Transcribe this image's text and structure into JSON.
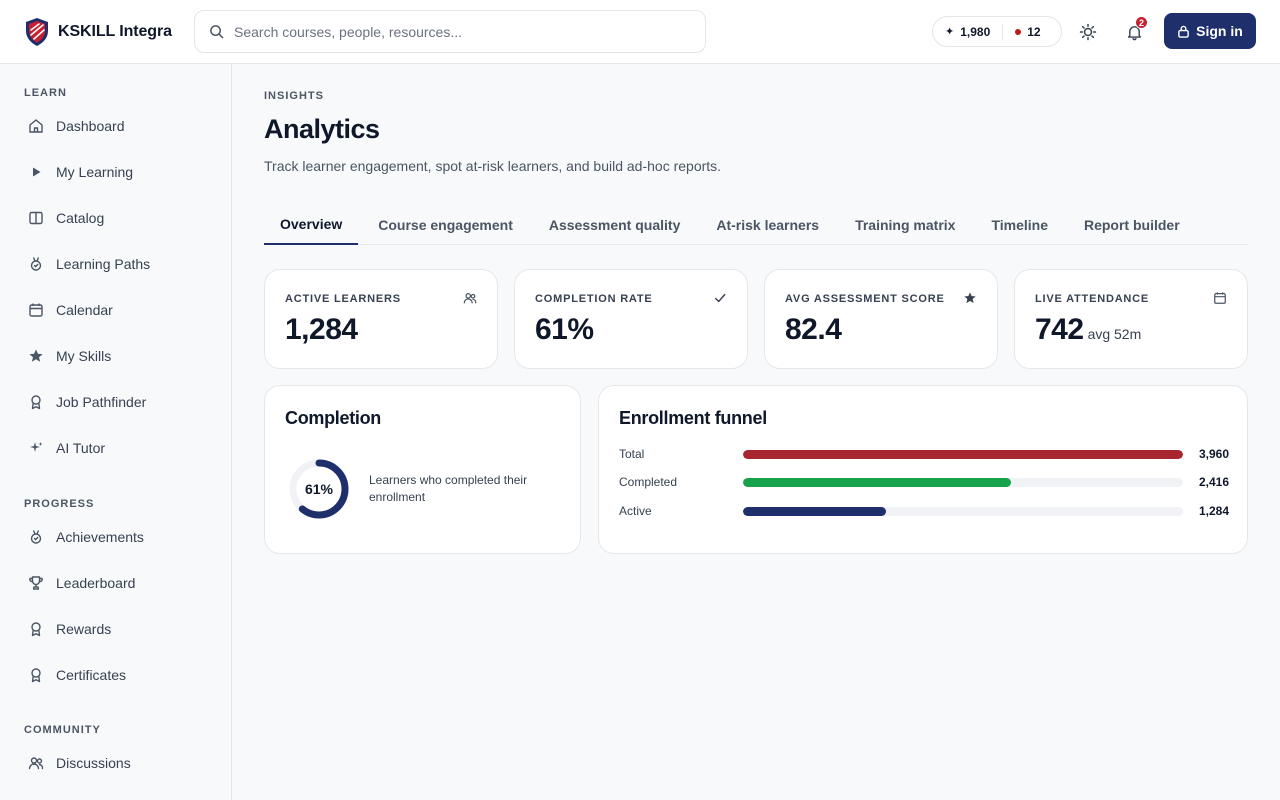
{
  "header": {
    "brand_name": "KSKILL Integra",
    "search_placeholder": "Search courses, people, resources...",
    "points": "1,980",
    "streak": "12",
    "notifications_count": "2",
    "signin_label": "Sign in"
  },
  "sidebar": {
    "sections": [
      {
        "title": "LEARN",
        "items": [
          {
            "label": "Dashboard",
            "icon": "home-icon"
          },
          {
            "label": "My Learning",
            "icon": "play-icon"
          },
          {
            "label": "Catalog",
            "icon": "book-icon"
          },
          {
            "label": "Learning Paths",
            "icon": "medal-icon"
          },
          {
            "label": "Calendar",
            "icon": "calendar-icon"
          },
          {
            "label": "My Skills",
            "icon": "star-icon"
          },
          {
            "label": "Job Pathfinder",
            "icon": "ribbon-icon"
          },
          {
            "label": "AI Tutor",
            "icon": "sparkle-icon"
          }
        ]
      },
      {
        "title": "PROGRESS",
        "items": [
          {
            "label": "Achievements",
            "icon": "medal-icon"
          },
          {
            "label": "Leaderboard",
            "icon": "trophy-icon"
          },
          {
            "label": "Rewards",
            "icon": "ribbon-icon"
          },
          {
            "label": "Certificates",
            "icon": "ribbon-icon"
          }
        ]
      },
      {
        "title": "COMMUNITY",
        "items": [
          {
            "label": "Discussions",
            "icon": "users-icon"
          }
        ]
      }
    ]
  },
  "main": {
    "eyebrow": "INSIGHTS",
    "title": "Analytics",
    "subtitle": "Track learner engagement, spot at-risk learners, and build ad-hoc reports.",
    "tabs": [
      {
        "label": "Overview",
        "active": true
      },
      {
        "label": "Course engagement",
        "active": false
      },
      {
        "label": "Assessment quality",
        "active": false
      },
      {
        "label": "At-risk learners",
        "active": false
      },
      {
        "label": "Training matrix",
        "active": false
      },
      {
        "label": "Timeline",
        "active": false
      },
      {
        "label": "Report builder",
        "active": false
      }
    ],
    "kpis": [
      {
        "label": "ACTIVE LEARNERS",
        "value": "1,284",
        "suffix": "",
        "icon": "users-icon"
      },
      {
        "label": "COMPLETION RATE",
        "value": "61%",
        "suffix": "",
        "icon": "check-icon"
      },
      {
        "label": "AVG ASSESSMENT SCORE",
        "value": "82.4",
        "suffix": "",
        "icon": "star-icon"
      },
      {
        "label": "LIVE ATTENDANCE",
        "value": "742",
        "suffix": "avg 52m",
        "icon": "calendar-icon"
      }
    ],
    "completion": {
      "title": "Completion",
      "percent_label": "61%",
      "percent": 61,
      "description": "Learners who completed their enrollment"
    },
    "funnel": {
      "title": "Enrollment funnel",
      "rows": [
        {
          "label": "Total",
          "value": 3960,
          "value_label": "3,960",
          "color": "#a8262f"
        },
        {
          "label": "Completed",
          "value": 2416,
          "value_label": "2,416",
          "color": "#16a34a"
        },
        {
          "label": "Active",
          "value": 1284,
          "value_label": "1,284",
          "color": "#1e2f6b"
        }
      ]
    }
  },
  "colors": {
    "brand": "#1e2f6b",
    "accent_red": "#a8262f",
    "success": "#16a34a"
  }
}
